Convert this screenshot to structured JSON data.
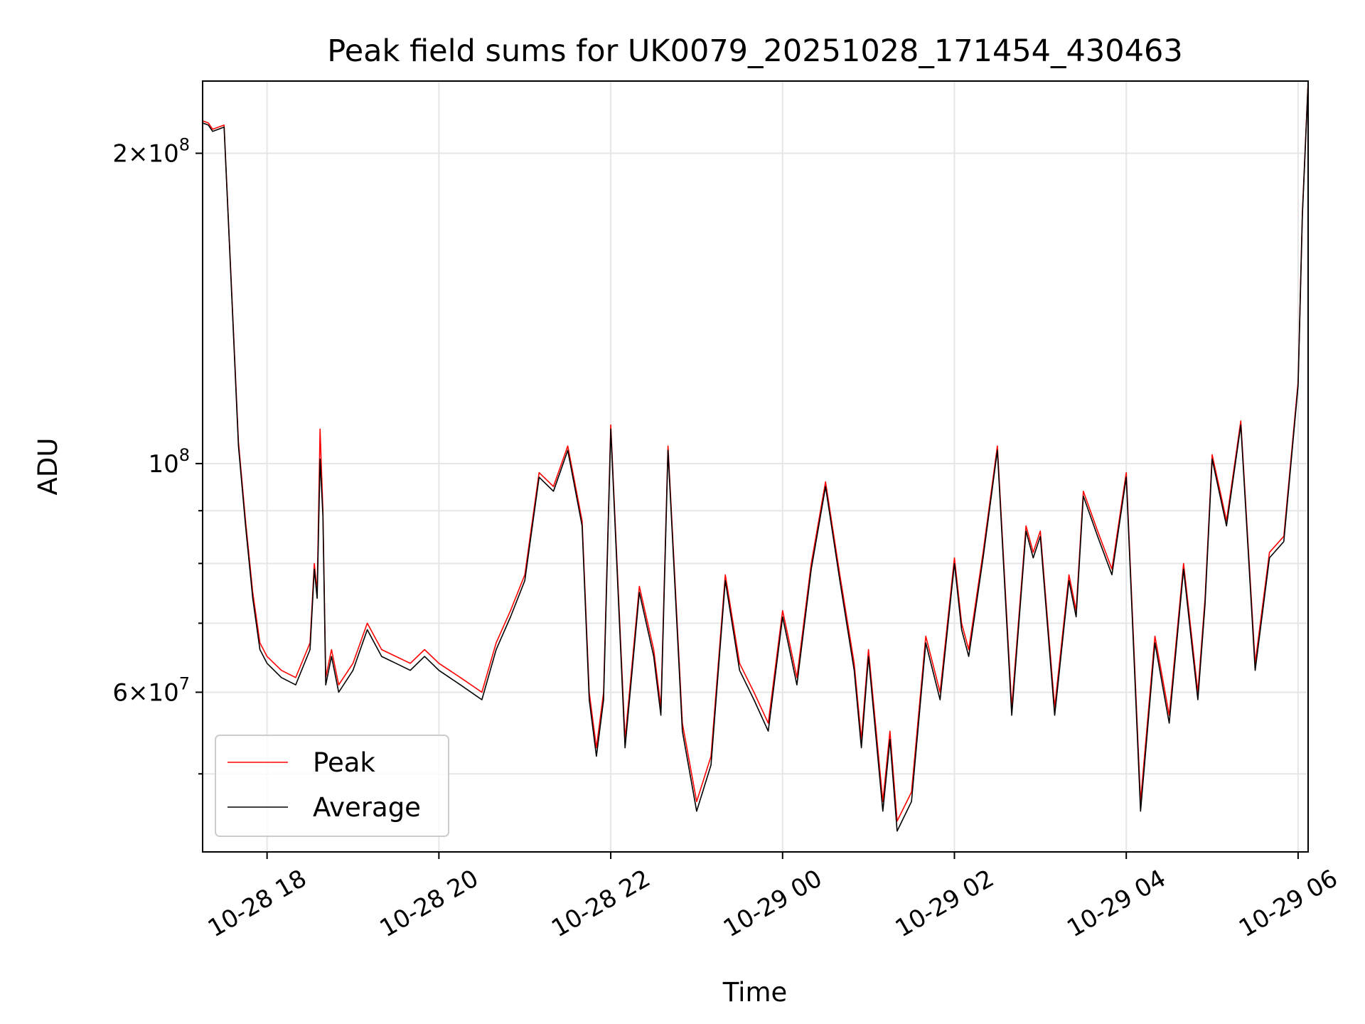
{
  "chart_data": {
    "type": "line",
    "title": "Peak field sums for UK0079_20251028_171454_430463",
    "xlabel": "Time",
    "ylabel": "ADU",
    "y_scale": "log",
    "xlim": [
      "2025-10-28 17:15",
      "2025-10-29 06:07"
    ],
    "ylim": [
      42000000,
      235000000
    ],
    "x_ticks": [
      "10-28 18",
      "10-28 20",
      "10-28 22",
      "10-29 00",
      "10-29 02",
      "10-29 04",
      "10-29 06"
    ],
    "y_ticks": [
      {
        "base": "2",
        "exp": "8",
        "value": 200000000
      },
      {
        "base": "",
        "exp": "8",
        "value": 100000000
      },
      {
        "base": "6",
        "exp": "7",
        "value": 60000000
      }
    ],
    "y_minor_ticks": [
      50000000,
      70000000,
      80000000,
      90000000
    ],
    "grid": true,
    "legend_position": "lower-left",
    "series": [
      {
        "name": "Peak",
        "color": "#ff0000",
        "x": [
          "2025-10-28 17:15",
          "2025-10-28 17:19",
          "2025-10-28 17:22",
          "2025-10-28 17:26",
          "2025-10-28 17:30",
          "2025-10-28 17:35",
          "2025-10-28 17:40",
          "2025-10-28 17:45",
          "2025-10-28 17:50",
          "2025-10-28 17:55",
          "2025-10-28 18:00",
          "2025-10-28 18:10",
          "2025-10-28 18:20",
          "2025-10-28 18:30",
          "2025-10-28 18:33",
          "2025-10-28 18:35",
          "2025-10-28 18:37",
          "2025-10-28 18:39",
          "2025-10-28 18:41",
          "2025-10-28 18:45",
          "2025-10-28 18:50",
          "2025-10-28 19:00",
          "2025-10-28 19:10",
          "2025-10-28 19:20",
          "2025-10-28 19:30",
          "2025-10-28 19:40",
          "2025-10-28 19:50",
          "2025-10-28 20:00",
          "2025-10-28 20:15",
          "2025-10-28 20:30",
          "2025-10-28 20:40",
          "2025-10-28 20:50",
          "2025-10-28 21:00",
          "2025-10-28 21:10",
          "2025-10-28 21:20",
          "2025-10-28 21:30",
          "2025-10-28 21:40",
          "2025-10-28 21:45",
          "2025-10-28 21:50",
          "2025-10-28 21:55",
          "2025-10-28 22:00",
          "2025-10-28 22:10",
          "2025-10-28 22:20",
          "2025-10-28 22:30",
          "2025-10-28 22:35",
          "2025-10-28 22:40",
          "2025-10-28 22:50",
          "2025-10-28 23:00",
          "2025-10-28 23:10",
          "2025-10-28 23:20",
          "2025-10-28 23:30",
          "2025-10-28 23:40",
          "2025-10-28 23:50",
          "2025-10-29 00:00",
          "2025-10-29 00:10",
          "2025-10-29 00:20",
          "2025-10-29 00:30",
          "2025-10-29 00:40",
          "2025-10-29 00:50",
          "2025-10-29 00:55",
          "2025-10-29 01:00",
          "2025-10-29 01:10",
          "2025-10-29 01:15",
          "2025-10-29 01:20",
          "2025-10-29 01:30",
          "2025-10-29 01:40",
          "2025-10-29 01:50",
          "2025-10-29 02:00",
          "2025-10-29 02:05",
          "2025-10-29 02:10",
          "2025-10-29 02:20",
          "2025-10-29 02:30",
          "2025-10-29 02:40",
          "2025-10-29 02:50",
          "2025-10-29 02:55",
          "2025-10-29 03:00",
          "2025-10-29 03:10",
          "2025-10-29 03:20",
          "2025-10-29 03:25",
          "2025-10-29 03:30",
          "2025-10-29 03:40",
          "2025-10-29 03:50",
          "2025-10-29 04:00",
          "2025-10-29 04:10",
          "2025-10-29 04:20",
          "2025-10-29 04:30",
          "2025-10-29 04:40",
          "2025-10-29 04:50",
          "2025-10-29 04:55",
          "2025-10-29 05:00",
          "2025-10-29 05:10",
          "2025-10-29 05:20",
          "2025-10-29 05:30",
          "2025-10-29 05:40",
          "2025-10-29 05:50",
          "2025-10-29 06:00",
          "2025-10-29 06:03",
          "2025-10-29 06:07"
        ],
        "values": [
          215000000,
          214000000,
          211000000,
          212000000,
          213000000,
          150000000,
          105000000,
          88000000,
          75000000,
          67000000,
          65000000,
          63000000,
          62000000,
          67000000,
          80000000,
          75000000,
          108000000,
          90000000,
          62000000,
          66000000,
          61000000,
          64000000,
          70000000,
          66000000,
          65000000,
          64000000,
          66000000,
          64000000,
          62000000,
          60000000,
          67000000,
          72000000,
          78000000,
          98000000,
          95000000,
          104000000,
          88000000,
          60000000,
          53000000,
          60000000,
          109000000,
          54000000,
          76000000,
          66000000,
          58000000,
          104000000,
          56000000,
          47000000,
          52000000,
          78000000,
          64000000,
          60000000,
          56000000,
          72000000,
          62000000,
          80000000,
          96000000,
          78000000,
          64000000,
          54000000,
          66000000,
          47000000,
          55000000,
          45000000,
          48000000,
          68000000,
          60000000,
          81000000,
          70000000,
          66000000,
          82000000,
          104000000,
          58000000,
          87000000,
          82000000,
          86000000,
          58000000,
          78000000,
          72000000,
          94000000,
          86000000,
          79000000,
          98000000,
          47000000,
          68000000,
          57000000,
          80000000,
          60000000,
          74000000,
          102000000,
          88000000,
          110000000,
          64000000,
          82000000,
          85000000,
          120000000,
          175000000,
          235000000
        ]
      },
      {
        "name": "Average",
        "color": "#000000",
        "x": [
          "2025-10-28 17:15",
          "2025-10-28 17:19",
          "2025-10-28 17:22",
          "2025-10-28 17:26",
          "2025-10-28 17:30",
          "2025-10-28 17:35",
          "2025-10-28 17:40",
          "2025-10-28 17:45",
          "2025-10-28 17:50",
          "2025-10-28 17:55",
          "2025-10-28 18:00",
          "2025-10-28 18:10",
          "2025-10-28 18:20",
          "2025-10-28 18:30",
          "2025-10-28 18:33",
          "2025-10-28 18:35",
          "2025-10-28 18:37",
          "2025-10-28 18:39",
          "2025-10-28 18:41",
          "2025-10-28 18:45",
          "2025-10-28 18:50",
          "2025-10-28 19:00",
          "2025-10-28 19:10",
          "2025-10-28 19:20",
          "2025-10-28 19:30",
          "2025-10-28 19:40",
          "2025-10-28 19:50",
          "2025-10-28 20:00",
          "2025-10-28 20:15",
          "2025-10-28 20:30",
          "2025-10-28 20:40",
          "2025-10-28 20:50",
          "2025-10-28 21:00",
          "2025-10-28 21:10",
          "2025-10-28 21:20",
          "2025-10-28 21:30",
          "2025-10-28 21:40",
          "2025-10-28 21:45",
          "2025-10-28 21:50",
          "2025-10-28 21:55",
          "2025-10-28 22:00",
          "2025-10-28 22:10",
          "2025-10-28 22:20",
          "2025-10-28 22:30",
          "2025-10-28 22:35",
          "2025-10-28 22:40",
          "2025-10-28 22:50",
          "2025-10-28 23:00",
          "2025-10-28 23:10",
          "2025-10-28 23:20",
          "2025-10-28 23:30",
          "2025-10-28 23:40",
          "2025-10-28 23:50",
          "2025-10-29 00:00",
          "2025-10-29 00:10",
          "2025-10-29 00:20",
          "2025-10-29 00:30",
          "2025-10-29 00:40",
          "2025-10-29 00:50",
          "2025-10-29 00:55",
          "2025-10-29 01:00",
          "2025-10-29 01:10",
          "2025-10-29 01:15",
          "2025-10-29 01:20",
          "2025-10-29 01:30",
          "2025-10-29 01:40",
          "2025-10-29 01:50",
          "2025-10-29 02:00",
          "2025-10-29 02:05",
          "2025-10-29 02:10",
          "2025-10-29 02:20",
          "2025-10-29 02:30",
          "2025-10-29 02:40",
          "2025-10-29 02:50",
          "2025-10-29 02:55",
          "2025-10-29 03:00",
          "2025-10-29 03:10",
          "2025-10-29 03:20",
          "2025-10-29 03:25",
          "2025-10-29 03:30",
          "2025-10-29 03:40",
          "2025-10-29 03:50",
          "2025-10-29 04:00",
          "2025-10-29 04:10",
          "2025-10-29 04:20",
          "2025-10-29 04:30",
          "2025-10-29 04:40",
          "2025-10-29 04:50",
          "2025-10-29 04:55",
          "2025-10-29 05:00",
          "2025-10-29 05:10",
          "2025-10-29 05:20",
          "2025-10-29 05:30",
          "2025-10-29 05:40",
          "2025-10-29 05:50",
          "2025-10-29 06:00",
          "2025-10-29 06:03",
          "2025-10-29 06:07"
        ],
        "values": [
          214000000,
          213000000,
          210000000,
          211000000,
          212000000,
          149000000,
          104000000,
          87000000,
          74000000,
          66000000,
          64000000,
          62000000,
          61000000,
          66000000,
          79000000,
          74000000,
          101000000,
          89000000,
          61000000,
          65000000,
          60000000,
          63000000,
          69000000,
          65000000,
          64000000,
          63000000,
          65000000,
          63000000,
          61000000,
          59000000,
          66000000,
          71000000,
          77000000,
          97000000,
          94000000,
          103000000,
          87000000,
          59000000,
          52000000,
          59000000,
          108000000,
          53000000,
          75000000,
          65000000,
          57000000,
          103000000,
          55000000,
          46000000,
          51000000,
          77000000,
          63000000,
          59000000,
          55000000,
          71000000,
          61000000,
          79000000,
          95000000,
          77000000,
          63000000,
          53000000,
          65000000,
          46000000,
          54000000,
          44000000,
          47000000,
          67000000,
          59000000,
          80000000,
          69000000,
          65000000,
          81000000,
          103000000,
          57000000,
          86000000,
          81000000,
          85000000,
          57000000,
          77000000,
          71000000,
          93000000,
          85000000,
          78000000,
          97000000,
          46000000,
          67000000,
          56000000,
          79000000,
          59000000,
          73000000,
          101000000,
          87000000,
          109000000,
          63000000,
          81000000,
          84000000,
          119000000,
          174000000,
          234000000
        ]
      }
    ]
  }
}
